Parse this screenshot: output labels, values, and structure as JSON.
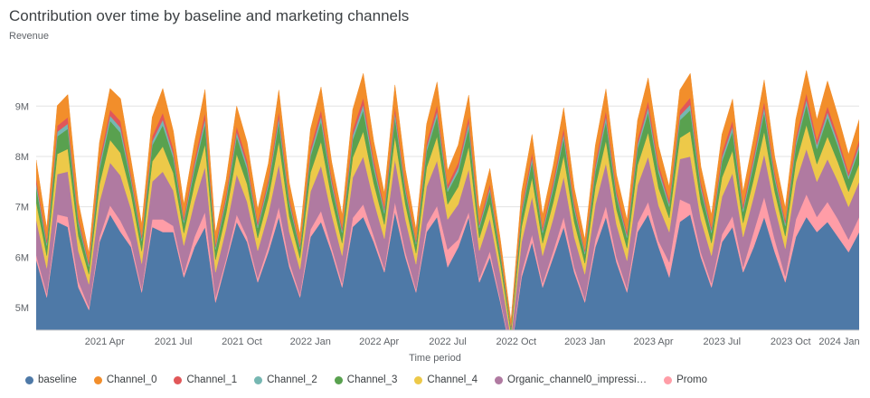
{
  "title": "Contribution over time by baseline and marketing channels",
  "chart_data": {
    "type": "area",
    "stacked": true,
    "title": "Contribution over time by baseline and marketing channels",
    "ylabel": "Revenue",
    "xlabel": "Time period",
    "grid": "horizontal-only",
    "legend_position": "bottom",
    "ylim": [
      4.55,
      9.85
    ],
    "xlim": [
      0,
      156
    ],
    "y_ticks": [
      {
        "value": 5,
        "label": "5M"
      },
      {
        "value": 6,
        "label": "6M"
      },
      {
        "value": 7,
        "label": "7M"
      },
      {
        "value": 8,
        "label": "8M"
      },
      {
        "value": 9,
        "label": "9M"
      }
    ],
    "x_ticks": [
      {
        "pos": 13,
        "label": "2021 Apr"
      },
      {
        "pos": 26,
        "label": "2021 Jul"
      },
      {
        "pos": 39,
        "label": "2021 Oct"
      },
      {
        "pos": 52,
        "label": "2022 Jan"
      },
      {
        "pos": 65,
        "label": "2022 Apr"
      },
      {
        "pos": 78,
        "label": "2022 Jul"
      },
      {
        "pos": 91,
        "label": "2022 Oct"
      },
      {
        "pos": 104,
        "label": "2023 Jan"
      },
      {
        "pos": 117,
        "label": "2023 Apr"
      },
      {
        "pos": 130,
        "label": "2023 Jul"
      },
      {
        "pos": 143,
        "label": "2023 Oct"
      },
      {
        "pos": 156,
        "label": "2024 Jan"
      }
    ],
    "x_unit": "weeks since 2021 Jan",
    "x": [
      0,
      2,
      4,
      6,
      8,
      10,
      12,
      14,
      16,
      18,
      20,
      22,
      24,
      26,
      28,
      30,
      32,
      34,
      36,
      38,
      40,
      42,
      44,
      46,
      48,
      50,
      52,
      54,
      56,
      58,
      60,
      62,
      64,
      66,
      68,
      70,
      72,
      74,
      76,
      78,
      80,
      82,
      84,
      86,
      88,
      90,
      92,
      94,
      96,
      98,
      100,
      102,
      104,
      106,
      108,
      110,
      112,
      114,
      116,
      118,
      120,
      122,
      124,
      126,
      128,
      130,
      132,
      134,
      136,
      138,
      140,
      142,
      144,
      146,
      148,
      150,
      152,
      154,
      156
    ],
    "values_unit": "millions of revenue, stacked bottom to top",
    "series": [
      {
        "name": "baseline",
        "color": "#4e79a7",
        "values": [
          5.95,
          5.2,
          6.7,
          6.6,
          5.4,
          4.95,
          6.3,
          6.85,
          6.5,
          6.2,
          5.3,
          6.6,
          6.5,
          6.5,
          5.6,
          6.2,
          6.6,
          5.1,
          5.9,
          6.7,
          6.3,
          5.5,
          6.1,
          6.8,
          5.8,
          5.2,
          6.4,
          6.7,
          6.1,
          5.4,
          6.6,
          6.8,
          6.3,
          5.7,
          6.9,
          6.0,
          5.3,
          6.5,
          6.8,
          5.8,
          6.2,
          6.8,
          5.5,
          6.0,
          5.1,
          4.1,
          5.6,
          6.3,
          5.4,
          6.0,
          6.6,
          5.7,
          5.1,
          6.2,
          6.8,
          5.9,
          5.3,
          6.5,
          6.85,
          6.2,
          5.6,
          6.7,
          6.85,
          6.0,
          5.4,
          6.3,
          6.6,
          5.7,
          6.2,
          6.8,
          6.1,
          5.5,
          6.4,
          6.8,
          6.5,
          6.7,
          6.4,
          6.1,
          6.5
        ]
      },
      {
        "name": "Promo",
        "color": "#ff9da7",
        "values": [
          0.1,
          0.08,
          0.15,
          0.2,
          0.12,
          0.06,
          0.1,
          0.18,
          0.22,
          0.1,
          0.07,
          0.15,
          0.25,
          0.12,
          0.08,
          0.2,
          0.3,
          0.1,
          0.07,
          0.15,
          0.1,
          0.08,
          0.12,
          0.2,
          0.1,
          0.06,
          0.15,
          0.22,
          0.1,
          0.08,
          0.18,
          0.25,
          0.12,
          0.07,
          0.2,
          0.1,
          0.06,
          0.15,
          0.22,
          0.35,
          0.15,
          0.1,
          0.08,
          0.12,
          0.06,
          0.05,
          0.1,
          0.15,
          0.08,
          0.12,
          0.2,
          0.1,
          0.06,
          0.15,
          0.22,
          0.1,
          0.08,
          0.18,
          0.25,
          0.12,
          0.3,
          0.45,
          0.2,
          0.1,
          0.08,
          0.15,
          0.22,
          0.1,
          0.3,
          0.4,
          0.25,
          0.12,
          0.35,
          0.45,
          0.3,
          0.4,
          0.35,
          0.25,
          0.3
        ]
      },
      {
        "name": "Organic_channel0_impressi…",
        "color": "#b07aa1",
        "values": [
          0.7,
          0.5,
          0.8,
          0.9,
          0.6,
          0.45,
          0.7,
          0.85,
          0.9,
          0.65,
          0.5,
          0.75,
          0.95,
          0.7,
          0.55,
          0.7,
          0.9,
          0.5,
          0.6,
          0.8,
          0.7,
          0.55,
          0.65,
          0.85,
          0.6,
          0.5,
          0.75,
          0.9,
          0.65,
          0.55,
          0.8,
          0.95,
          0.7,
          0.6,
          0.85,
          0.65,
          0.5,
          0.75,
          0.9,
          0.6,
          0.7,
          0.85,
          0.55,
          0.65,
          0.5,
          0.25,
          0.6,
          0.75,
          0.55,
          0.65,
          0.8,
          0.6,
          0.5,
          0.7,
          0.85,
          0.65,
          0.55,
          0.75,
          0.9,
          0.7,
          0.6,
          0.8,
          0.95,
          0.65,
          0.55,
          0.75,
          0.85,
          0.6,
          0.7,
          0.85,
          0.65,
          0.55,
          0.75,
          0.9,
          0.7,
          0.85,
          0.75,
          0.65,
          0.7
        ]
      },
      {
        "name": "Channel_4",
        "color": "#edc949",
        "values": [
          0.35,
          0.25,
          0.4,
          0.45,
          0.3,
          0.2,
          0.35,
          0.45,
          0.45,
          0.3,
          0.25,
          0.4,
          0.5,
          0.35,
          0.25,
          0.35,
          0.45,
          0.25,
          0.3,
          0.4,
          0.35,
          0.25,
          0.3,
          0.45,
          0.3,
          0.22,
          0.38,
          0.48,
          0.32,
          0.25,
          0.4,
          0.5,
          0.35,
          0.28,
          0.45,
          0.3,
          0.22,
          0.38,
          0.48,
          0.3,
          0.35,
          0.45,
          0.25,
          0.3,
          0.22,
          0.1,
          0.3,
          0.38,
          0.25,
          0.32,
          0.42,
          0.3,
          0.22,
          0.35,
          0.45,
          0.3,
          0.25,
          0.4,
          0.48,
          0.35,
          0.28,
          0.42,
          0.5,
          0.32,
          0.25,
          0.38,
          0.45,
          0.28,
          0.35,
          0.45,
          0.3,
          0.25,
          0.38,
          0.48,
          0.35,
          0.45,
          0.38,
          0.3,
          0.35
        ]
      },
      {
        "name": "Channel_3",
        "color": "#59a14f",
        "values": [
          0.3,
          0.2,
          0.35,
          0.4,
          0.25,
          0.15,
          0.3,
          0.38,
          0.4,
          0.25,
          0.2,
          0.32,
          0.42,
          0.3,
          0.2,
          0.3,
          0.4,
          0.2,
          0.25,
          0.35,
          0.3,
          0.2,
          0.25,
          0.38,
          0.25,
          0.18,
          0.32,
          0.4,
          0.27,
          0.2,
          0.35,
          0.42,
          0.3,
          0.22,
          0.38,
          0.25,
          0.18,
          0.32,
          0.4,
          0.25,
          0.3,
          0.38,
          0.2,
          0.25,
          0.18,
          0.08,
          0.25,
          0.32,
          0.2,
          0.27,
          0.35,
          0.25,
          0.18,
          0.3,
          0.38,
          0.25,
          0.2,
          0.33,
          0.4,
          0.3,
          0.22,
          0.35,
          0.42,
          0.27,
          0.2,
          0.32,
          0.38,
          0.22,
          0.3,
          0.38,
          0.25,
          0.2,
          0.32,
          0.4,
          0.3,
          0.38,
          0.32,
          0.25,
          0.3
        ]
      },
      {
        "name": "Channel_2",
        "color": "#76b7b2",
        "values": [
          0.08,
          0.05,
          0.09,
          0.1,
          0.06,
          0.04,
          0.08,
          0.1,
          0.1,
          0.06,
          0.05,
          0.08,
          0.11,
          0.08,
          0.05,
          0.08,
          0.1,
          0.05,
          0.06,
          0.09,
          0.08,
          0.05,
          0.06,
          0.1,
          0.06,
          0.04,
          0.08,
          0.1,
          0.07,
          0.05,
          0.09,
          0.11,
          0.08,
          0.06,
          0.1,
          0.06,
          0.04,
          0.08,
          0.1,
          0.06,
          0.08,
          0.1,
          0.05,
          0.06,
          0.04,
          0.02,
          0.06,
          0.08,
          0.05,
          0.07,
          0.09,
          0.06,
          0.04,
          0.08,
          0.1,
          0.06,
          0.05,
          0.08,
          0.1,
          0.08,
          0.06,
          0.09,
          0.11,
          0.07,
          0.05,
          0.08,
          0.1,
          0.06,
          0.08,
          0.1,
          0.06,
          0.05,
          0.08,
          0.1,
          0.08,
          0.1,
          0.08,
          0.06,
          0.08
        ]
      },
      {
        "name": "Channel_1",
        "color": "#e15759",
        "values": [
          0.1,
          0.07,
          0.12,
          0.13,
          0.08,
          0.05,
          0.1,
          0.12,
          0.13,
          0.08,
          0.06,
          0.1,
          0.14,
          0.1,
          0.07,
          0.1,
          0.13,
          0.06,
          0.08,
          0.11,
          0.1,
          0.07,
          0.08,
          0.12,
          0.08,
          0.05,
          0.1,
          0.13,
          0.09,
          0.07,
          0.11,
          0.14,
          0.1,
          0.08,
          0.12,
          0.08,
          0.05,
          0.1,
          0.13,
          0.08,
          0.1,
          0.12,
          0.07,
          0.08,
          0.05,
          0.03,
          0.08,
          0.1,
          0.07,
          0.09,
          0.11,
          0.08,
          0.05,
          0.1,
          0.12,
          0.08,
          0.07,
          0.1,
          0.13,
          0.1,
          0.08,
          0.11,
          0.14,
          0.09,
          0.07,
          0.1,
          0.12,
          0.08,
          0.1,
          0.12,
          0.08,
          0.07,
          0.1,
          0.13,
          0.1,
          0.12,
          0.1,
          0.08,
          0.1
        ]
      },
      {
        "name": "Channel_0",
        "color": "#f28e2b",
        "values": [
          0.35,
          0.22,
          0.4,
          0.45,
          0.28,
          0.18,
          0.35,
          0.42,
          0.45,
          0.28,
          0.22,
          0.38,
          0.48,
          0.35,
          0.25,
          0.35,
          0.45,
          0.22,
          0.28,
          0.4,
          0.35,
          0.25,
          0.3,
          0.42,
          0.28,
          0.2,
          0.36,
          0.45,
          0.3,
          0.24,
          0.4,
          0.48,
          0.35,
          0.26,
          0.42,
          0.3,
          0.2,
          0.36,
          0.45,
          0.28,
          0.35,
          0.42,
          0.24,
          0.3,
          0.2,
          0.1,
          0.3,
          0.36,
          0.24,
          0.3,
          0.4,
          0.28,
          0.2,
          0.34,
          0.42,
          0.3,
          0.24,
          0.38,
          0.45,
          0.35,
          0.26,
          0.4,
          0.48,
          0.3,
          0.24,
          0.36,
          0.42,
          0.26,
          0.34,
          0.42,
          0.3,
          0.24,
          0.36,
          0.45,
          0.4,
          0.5,
          0.42,
          0.35,
          0.4
        ]
      }
    ],
    "legend": [
      {
        "label": "baseline",
        "color": "#4e79a7"
      },
      {
        "label": "Channel_0",
        "color": "#f28e2b"
      },
      {
        "label": "Channel_1",
        "color": "#e15759"
      },
      {
        "label": "Channel_2",
        "color": "#76b7b2"
      },
      {
        "label": "Channel_3",
        "color": "#59a14f"
      },
      {
        "label": "Channel_4",
        "color": "#edc949"
      },
      {
        "label": "Organic_channel0_impressi…",
        "color": "#b07aa1"
      },
      {
        "label": "Promo",
        "color": "#ff9da7"
      }
    ],
    "axis_colors": {
      "grid": "#e3e3e3",
      "axis_line": "#cccccc",
      "tick_text": "#5f6368"
    }
  }
}
